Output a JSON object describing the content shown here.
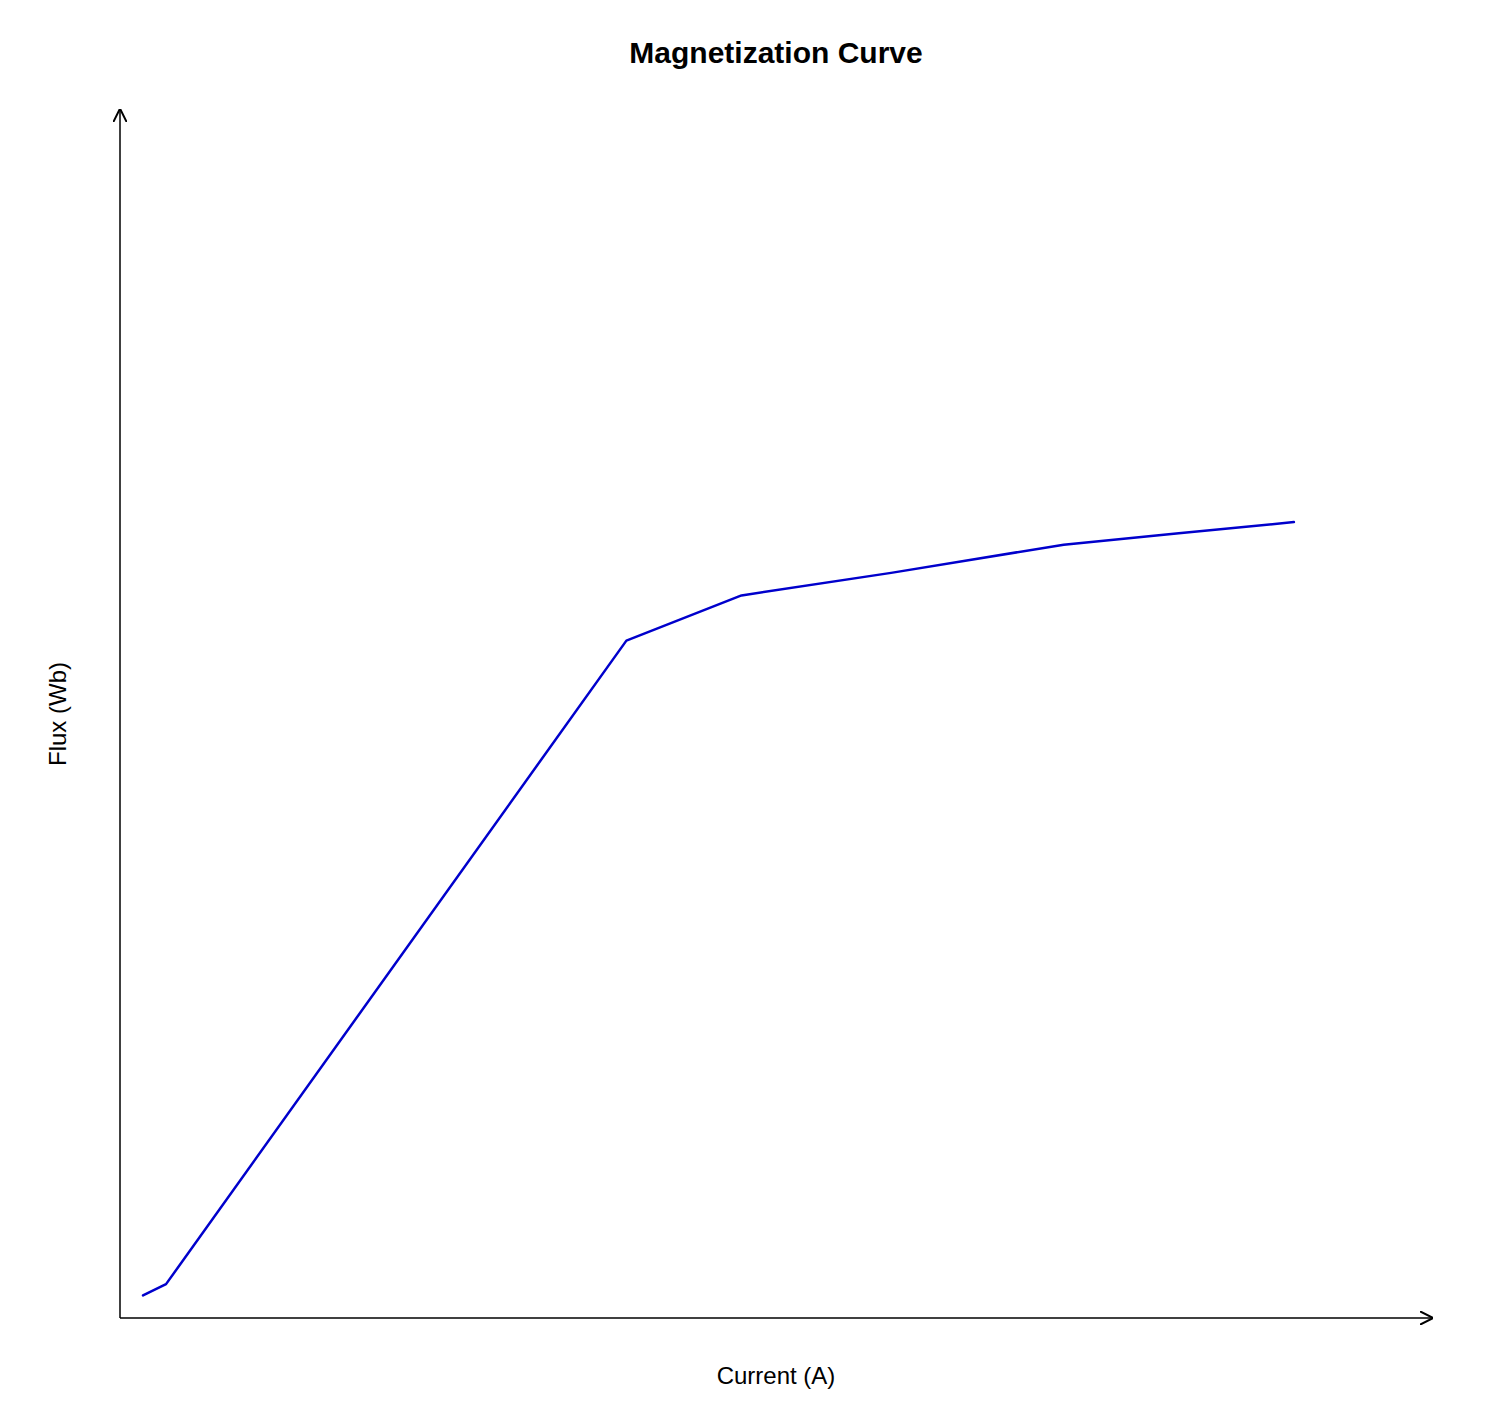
{
  "chart_data": {
    "type": "line",
    "title": "Magnetization Curve",
    "x_label": "Current (A)",
    "y_label": "Flux (Wb)",
    "x": [
      0.0,
      0.02,
      0.42,
      0.52,
      0.65,
      0.8,
      0.9,
      1.0
    ],
    "values": [
      0.0,
      0.01,
      0.58,
      0.62,
      0.64,
      0.665,
      0.675,
      0.685
    ],
    "color": "#0000cc",
    "xlim": [
      -0.02,
      1.12
    ],
    "ylim": [
      -0.02,
      1.05
    ],
    "tick_labels": false,
    "grid": false
  }
}
